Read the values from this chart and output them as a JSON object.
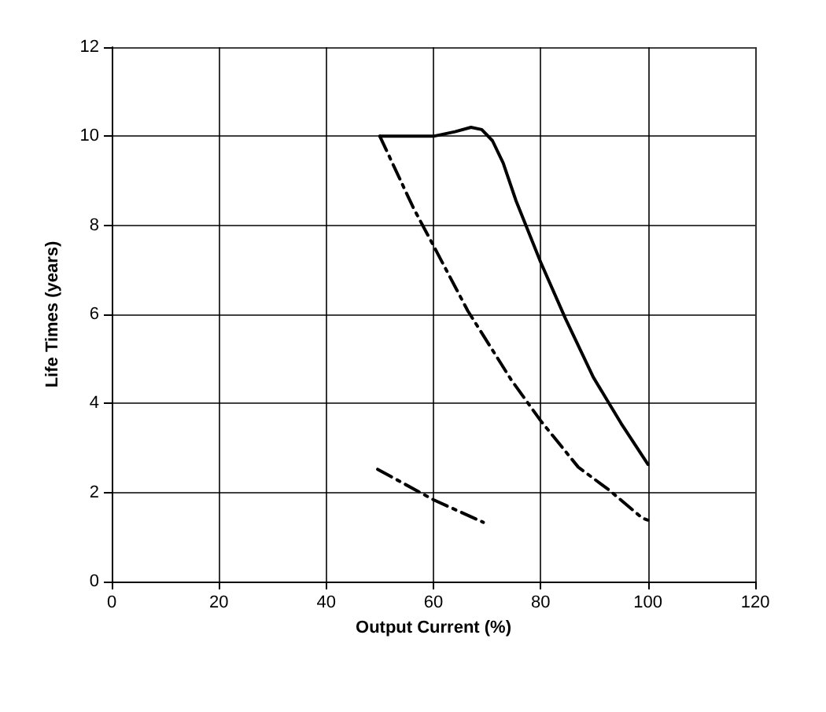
{
  "chart_data": {
    "type": "line",
    "xlabel": "Output Current (%)",
    "ylabel": "Life Times (years)",
    "xlim": [
      0,
      120
    ],
    "xticks": [
      0,
      20,
      40,
      60,
      80,
      100,
      120
    ],
    "ylim": [
      0,
      12
    ],
    "yticks": [
      0,
      2,
      4,
      6,
      8,
      10,
      12
    ],
    "grid": true,
    "marker": "none",
    "series": [
      {
        "color": "#000000",
        "line_style": "solid",
        "x": [
          50,
          55,
          60,
          64,
          67,
          69,
          71,
          73,
          75.4,
          80,
          84.6,
          89.8,
          95,
          100
        ],
        "values": [
          10,
          10,
          10,
          10.1,
          10.2,
          10.15,
          9.9,
          9.4,
          8.55,
          7.17,
          5.91,
          4.59,
          3.55,
          2.63
        ]
      },
      {
        "color": "#000000",
        "line_style": "dashed",
        "x": [
          50,
          56.3,
          60.1,
          66.4,
          74.5,
          80,
          87,
          92.7,
          99,
          100
        ],
        "values": [
          10,
          8.38,
          7.52,
          6.08,
          4.53,
          3.61,
          2.57,
          2.06,
          1.42,
          1.38
        ]
      },
      {
        "color": "#000000",
        "line_style": "dashed",
        "x": [
          49.6,
          60.1,
          69.3
        ],
        "values": [
          2.52,
          1.83,
          1.33
        ]
      }
    ]
  }
}
